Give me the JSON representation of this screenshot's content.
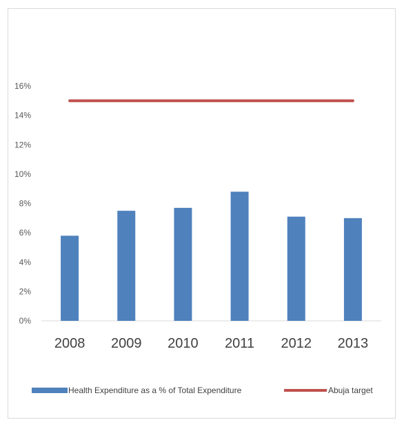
{
  "chart_data": {
    "type": "bar",
    "title": "",
    "xlabel": "",
    "ylabel": "",
    "categories": [
      "2008",
      "2009",
      "2010",
      "2011",
      "2012",
      "2013"
    ],
    "series": [
      {
        "name": "Health Expenditure as a % of Total Expenditure",
        "kind": "bar",
        "color": "#4f81bd",
        "values": [
          0.058,
          0.075,
          0.077,
          0.088,
          0.071,
          0.07
        ]
      },
      {
        "name": "Abuja target",
        "kind": "line",
        "color": "#c0504d",
        "values": [
          0.15,
          0.15,
          0.15,
          0.15,
          0.15,
          0.15
        ]
      }
    ],
    "ylim": [
      0,
      0.16
    ],
    "yticks": [
      0,
      0.02,
      0.04,
      0.06,
      0.08,
      0.1,
      0.12,
      0.14,
      0.16
    ],
    "ytick_labels": [
      "0%",
      "2%",
      "4%",
      "6%",
      "8%",
      "10%",
      "12%",
      "14%",
      "16%"
    ],
    "grid": false,
    "legend_position": "bottom"
  }
}
